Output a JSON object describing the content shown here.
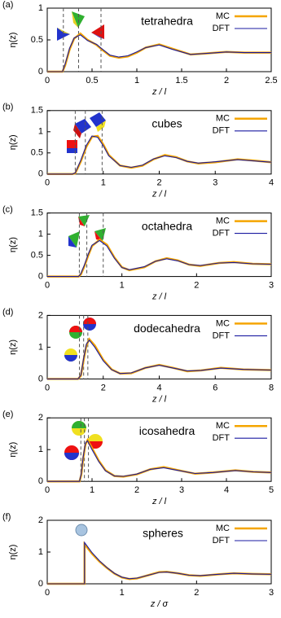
{
  "chart_data": [
    {
      "type": "line",
      "panel": "(a)",
      "title": "tetrahedra",
      "xlabel": "z / l",
      "ylabel": "η(z)",
      "xlim": [
        0,
        2.5
      ],
      "ylim": [
        0,
        1
      ],
      "xticks": [
        0,
        0.5,
        1,
        1.5,
        2,
        2.5
      ],
      "yticks": [
        0,
        0.5,
        1
      ],
      "vlines": [
        0.18,
        0.35,
        0.6
      ],
      "x": [
        0,
        0.17,
        0.2,
        0.25,
        0.3,
        0.37,
        0.45,
        0.55,
        0.6,
        0.7,
        0.8,
        0.9,
        1.0,
        1.1,
        1.25,
        1.4,
        1.6,
        1.8,
        2.0,
        2.2,
        2.5
      ],
      "series": [
        {
          "name": "MC",
          "color": "#f5a500",
          "values": [
            0,
            0,
            0.1,
            0.35,
            0.52,
            0.6,
            0.5,
            0.42,
            0.36,
            0.25,
            0.22,
            0.24,
            0.3,
            0.38,
            0.43,
            0.36,
            0.27,
            0.29,
            0.31,
            0.3,
            0.3
          ]
        },
        {
          "name": "DFT",
          "color": "#1a1aa0",
          "values": [
            0,
            0,
            0.12,
            0.37,
            0.53,
            0.58,
            0.49,
            0.43,
            0.37,
            0.26,
            0.23,
            0.25,
            0.31,
            0.38,
            0.42,
            0.35,
            0.27,
            0.29,
            0.31,
            0.3,
            0.3
          ]
        }
      ]
    },
    {
      "type": "line",
      "panel": "(b)",
      "title": "cubes",
      "xlabel": "z / l",
      "ylabel": "η(z)",
      "xlim": [
        0,
        4
      ],
      "ylim": [
        0,
        1.5
      ],
      "xticks": [
        0,
        1,
        2,
        3,
        4
      ],
      "yticks": [
        0,
        0.5,
        1,
        1.5
      ],
      "vlines": [
        0.5,
        0.68,
        0.98
      ],
      "x": [
        0,
        0.45,
        0.5,
        0.6,
        0.7,
        0.8,
        0.9,
        1.0,
        1.1,
        1.3,
        1.5,
        1.7,
        1.9,
        2.1,
        2.3,
        2.5,
        2.7,
        3.0,
        3.4,
        3.7,
        4.0
      ],
      "series": [
        {
          "name": "MC",
          "color": "#f5a500",
          "values": [
            0,
            0,
            0.02,
            0.3,
            0.65,
            0.88,
            0.9,
            0.7,
            0.45,
            0.2,
            0.15,
            0.2,
            0.35,
            0.45,
            0.4,
            0.3,
            0.25,
            0.28,
            0.35,
            0.32,
            0.28
          ]
        },
        {
          "name": "DFT",
          "color": "#1a1aa0",
          "values": [
            0,
            0,
            0.03,
            0.33,
            0.68,
            0.9,
            0.87,
            0.67,
            0.43,
            0.2,
            0.16,
            0.21,
            0.36,
            0.43,
            0.39,
            0.3,
            0.26,
            0.29,
            0.34,
            0.31,
            0.28
          ]
        }
      ]
    },
    {
      "type": "line",
      "panel": "(c)",
      "title": "octahedra",
      "xlabel": "z / l",
      "ylabel": "η(z)",
      "xlim": [
        0,
        3
      ],
      "ylim": [
        0,
        1.5
      ],
      "xticks": [
        0,
        1,
        2,
        3
      ],
      "yticks": [
        0,
        0.5,
        1,
        1.5
      ],
      "vlines": [
        0.43,
        0.53,
        0.75
      ],
      "x": [
        0,
        0.42,
        0.45,
        0.5,
        0.55,
        0.6,
        0.7,
        0.8,
        0.9,
        1.0,
        1.1,
        1.3,
        1.45,
        1.6,
        1.75,
        1.9,
        2.05,
        2.3,
        2.5,
        2.75,
        3.0
      ],
      "series": [
        {
          "name": "MC",
          "color": "#f5a500",
          "values": [
            0,
            0,
            0.05,
            0.25,
            0.5,
            0.72,
            0.87,
            0.75,
            0.45,
            0.22,
            0.15,
            0.22,
            0.36,
            0.43,
            0.38,
            0.28,
            0.25,
            0.32,
            0.34,
            0.3,
            0.29
          ]
        },
        {
          "name": "DFT",
          "color": "#1a1aa0",
          "values": [
            0,
            0,
            0.07,
            0.28,
            0.53,
            0.74,
            0.85,
            0.72,
            0.43,
            0.21,
            0.16,
            0.23,
            0.36,
            0.42,
            0.37,
            0.28,
            0.26,
            0.32,
            0.33,
            0.3,
            0.29
          ]
        }
      ]
    },
    {
      "type": "line",
      "panel": "(d)",
      "title": "dodecahedra",
      "xlabel": "z / l",
      "ylabel": "η(z)",
      "xlim": [
        0,
        8
      ],
      "ylim": [
        0,
        2
      ],
      "xticks": [
        0,
        2,
        4,
        6,
        8
      ],
      "yticks": [
        0,
        1,
        2
      ],
      "vlines": [
        1.15,
        1.3,
        1.45
      ],
      "x": [
        0,
        1.1,
        1.2,
        1.3,
        1.4,
        1.5,
        1.7,
        2.0,
        2.3,
        2.6,
        3.0,
        3.5,
        4.0,
        4.5,
        5.0,
        5.5,
        6.2,
        7,
        8
      ],
      "series": [
        {
          "name": "MC",
          "color": "#f5a500",
          "values": [
            0,
            0,
            0.1,
            0.6,
            1.05,
            1.25,
            1.05,
            0.6,
            0.3,
            0.17,
            0.18,
            0.35,
            0.44,
            0.35,
            0.24,
            0.27,
            0.35,
            0.3,
            0.28
          ]
        },
        {
          "name": "DFT",
          "color": "#1a1aa0",
          "values": [
            0,
            0,
            0.12,
            0.65,
            1.1,
            1.22,
            1.0,
            0.57,
            0.29,
            0.17,
            0.19,
            0.35,
            0.43,
            0.34,
            0.25,
            0.27,
            0.34,
            0.3,
            0.28
          ]
        }
      ]
    },
    {
      "type": "line",
      "panel": "(e)",
      "title": "icosahedra",
      "xlabel": "z / l",
      "ylabel": "η(z)",
      "xlim": [
        0,
        5
      ],
      "ylim": [
        0,
        2
      ],
      "xticks": [
        0,
        1,
        2,
        3,
        4,
        5
      ],
      "yticks": [
        0,
        1,
        2
      ],
      "vlines": [
        0.75,
        0.83,
        0.92
      ],
      "x": [
        0,
        0.72,
        0.76,
        0.8,
        0.85,
        0.9,
        1.0,
        1.15,
        1.3,
        1.5,
        1.7,
        2.0,
        2.3,
        2.6,
        2.9,
        3.3,
        3.7,
        4.2,
        4.6,
        5
      ],
      "series": [
        {
          "name": "MC",
          "color": "#f5a500",
          "values": [
            0,
            0,
            0.2,
            0.7,
            1.15,
            1.3,
            1.05,
            0.65,
            0.35,
            0.17,
            0.15,
            0.22,
            0.38,
            0.45,
            0.36,
            0.24,
            0.28,
            0.35,
            0.3,
            0.28
          ]
        },
        {
          "name": "DFT",
          "color": "#1a1aa0",
          "values": [
            0,
            0,
            0.25,
            0.75,
            1.2,
            1.28,
            1.0,
            0.62,
            0.33,
            0.17,
            0.16,
            0.23,
            0.38,
            0.43,
            0.35,
            0.25,
            0.28,
            0.34,
            0.3,
            0.28
          ]
        }
      ]
    },
    {
      "type": "line",
      "panel": "(f)",
      "title": "spheres",
      "xlabel": "z / σ",
      "ylabel": "η(z)",
      "xlim": [
        0,
        3
      ],
      "ylim": [
        0,
        2
      ],
      "xticks": [
        0,
        1,
        2,
        3
      ],
      "yticks": [
        0,
        1,
        2
      ],
      "vlines": [],
      "x": [
        0,
        0.5,
        0.5,
        0.6,
        0.7,
        0.8,
        0.9,
        1.0,
        1.1,
        1.2,
        1.35,
        1.5,
        1.6,
        1.75,
        1.9,
        2.05,
        2.3,
        2.5,
        2.75,
        3
      ],
      "series": [
        {
          "name": "MC",
          "color": "#f5a500",
          "values": [
            0,
            0,
            1.25,
            0.95,
            0.7,
            0.5,
            0.32,
            0.2,
            0.15,
            0.17,
            0.27,
            0.37,
            0.38,
            0.33,
            0.27,
            0.25,
            0.3,
            0.33,
            0.31,
            0.3
          ]
        },
        {
          "name": "DFT",
          "color": "#1a1aa0",
          "values": [
            0,
            0,
            1.3,
            0.98,
            0.72,
            0.51,
            0.33,
            0.21,
            0.16,
            0.18,
            0.27,
            0.36,
            0.37,
            0.33,
            0.27,
            0.26,
            0.3,
            0.33,
            0.31,
            0.3
          ]
        }
      ]
    }
  ]
}
